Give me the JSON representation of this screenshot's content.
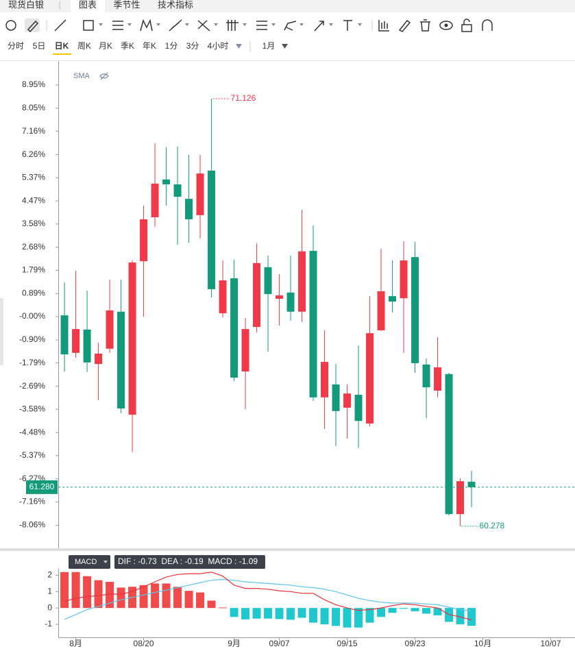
{
  "ui": {
    "tabs": [
      "现货白银",
      "图表",
      "季节性",
      "技术指标"
    ],
    "periods": [
      "分时",
      "5日",
      "日K",
      "周K",
      "月K",
      "季K",
      "年K",
      "1分",
      "3分",
      "4小时"
    ],
    "range": "1月"
  },
  "chart_data": [
    {
      "type": "candlestick",
      "indicator": "SMA",
      "up_color": "#f03a4a",
      "down_color": "#129a7b",
      "open": [
        0.05,
        -1.4,
        -0.5,
        -1.83,
        -1.24,
        0.19,
        -3.79,
        2.14,
        3.84,
        5.3,
        5.11,
        4.55,
        3.92,
        5.64,
        0.13,
        1.48,
        -2.12,
        -0.4,
        1.91,
        0.69,
        0.93,
        0.19,
        2.54,
        -3.12,
        -2.62,
        -3.52,
        -3.02,
        -4.13,
        -0.53,
        0.79,
        0.71,
        2.3,
        -1.85,
        -2.86,
        -2.22,
        -7.63,
        -6.38
      ],
      "high": [
        1.32,
        1.77,
        1.01,
        -1.01,
        1.43,
        1.43,
        2.17,
        4.29,
        6.7,
        6.54,
        6.57,
        6.25,
        6.25,
        8.42,
        2.17,
        2.2,
        -0.05,
        2.83,
        2.36,
        1.64,
        2.36,
        4.13,
        3.52,
        -0.53,
        -1.83,
        -2.62,
        -1.11,
        0.79,
        2.62,
        2.17,
        2.91,
        2.89,
        -1.62,
        -0.79,
        -2.17,
        -6.25,
        -5.96
      ],
      "low": [
        -2.12,
        -1.59,
        -2.14,
        -3.23,
        -1.4,
        -3.73,
        -5.24,
        0,
        3.47,
        4.29,
        2.78,
        2.86,
        3.02,
        0.74,
        -0.03,
        -2.49,
        -3.57,
        -0.61,
        -1.35,
        -0.34,
        -0.16,
        -0.21,
        -3.26,
        -4.34,
        -5.0,
        -4.71,
        -5.08,
        -4.24,
        -0.56,
        0.16,
        -1.4,
        -2.17,
        -3.92,
        -3.12,
        -7.68,
        -8.1,
        -7.36
      ],
      "close": [
        -1.46,
        -0.48,
        -1.77,
        -1.43,
        0.24,
        -3.55,
        2.09,
        3.76,
        5.14,
        5.11,
        4.63,
        3.76,
        5.53,
        1.06,
        1.4,
        -2.36,
        -0.48,
        2.07,
        0.87,
        0.82,
        0.19,
        2.52,
        -3.12,
        -1.75,
        -3.65,
        -2.97,
        -4.03,
        -0.64,
        0.98,
        0.58,
        2.17,
        -1.8,
        -2.73,
        -1.96,
        -7.63,
        -6.36,
        -6.59
      ],
      "annotations": {
        "high": "71.126",
        "low": "60.278",
        "last": "61.280"
      },
      "xlim": [
        -0.55,
        45.15
      ],
      "ylim": [
        -8.95,
        9.85
      ],
      "yticks": [
        {
          "value": 8.95,
          "label": "8.95%"
        },
        {
          "value": 8.05,
          "label": "8.05%"
        },
        {
          "value": 7.16,
          "label": "7.16%"
        },
        {
          "value": 6.26,
          "label": "6.26%"
        },
        {
          "value": 5.37,
          "label": "5.37%"
        },
        {
          "value": 4.47,
          "label": "4.47%"
        },
        {
          "value": 3.58,
          "label": "3.58%"
        },
        {
          "value": 2.68,
          "label": "2.68%"
        },
        {
          "value": 1.79,
          "label": "1.79%"
        },
        {
          "value": 0.89,
          "label": "0.89%"
        },
        {
          "value": 0,
          "label": "-0.00%"
        },
        {
          "value": -0.9,
          "label": "-0.90%"
        },
        {
          "value": -1.79,
          "label": "-1.79%"
        },
        {
          "value": -2.69,
          "label": "-2.69%"
        },
        {
          "value": -3.58,
          "label": "-3.58%"
        },
        {
          "value": -4.48,
          "label": "-4.48%"
        },
        {
          "value": -5.37,
          "label": "-5.37%"
        },
        {
          "value": -6.27,
          "label": "-6.27%"
        },
        {
          "value": -7.16,
          "label": "-7.16%"
        },
        {
          "value": -8.06,
          "label": "-8.06%"
        }
      ]
    },
    {
      "type": "macd",
      "label": "MACD",
      "legend": "DIF : -0.73  DEA : -0.19  MACD : -1.09",
      "histogram": {
        "pos_color": "#f04a4a",
        "neg_color": "#1ec8cc",
        "values": [
          2.2,
          2.2,
          1.95,
          1.7,
          1.6,
          1.25,
          1.3,
          1.4,
          1.5,
          1.5,
          1.3,
          1.05,
          0.95,
          0.45,
          0.03,
          -0.55,
          -0.7,
          -0.65,
          -0.65,
          -0.68,
          -0.72,
          -0.6,
          -0.9,
          -1.0,
          -1.1,
          -1.2,
          -1.2,
          -0.9,
          -0.55,
          -0.3,
          -0.05,
          -0.2,
          -0.35,
          -0.45,
          -0.85,
          -1.0,
          -1.09
        ]
      },
      "dif": {
        "color": "#e8303c",
        "values": [
          0.4,
          0.6,
          0.7,
          0.75,
          0.85,
          0.85,
          1.0,
          1.3,
          1.6,
          1.9,
          2.05,
          2.1,
          2.1,
          2.2,
          1.95,
          1.4,
          1.2,
          1.2,
          1.15,
          1.05,
          1.0,
          0.9,
          0.9,
          0.5,
          0.2,
          0.0,
          -0.15,
          -0.1,
          0.0,
          0.15,
          0.25,
          0.2,
          0.1,
          0.0,
          -0.4,
          -0.55,
          -0.73
        ]
      },
      "dea": {
        "color": "#5cc4ea",
        "values": [
          -0.7,
          -0.4,
          -0.1,
          0.1,
          0.3,
          0.5,
          0.65,
          0.8,
          0.95,
          1.1,
          1.25,
          1.4,
          1.55,
          1.7,
          1.75,
          1.7,
          1.6,
          1.55,
          1.5,
          1.45,
          1.4,
          1.3,
          1.25,
          1.15,
          1.0,
          0.8,
          0.6,
          0.45,
          0.35,
          0.3,
          0.3,
          0.3,
          0.25,
          0.2,
          0.05,
          -0.1,
          -0.19
        ]
      },
      "xlim": [
        -0.55,
        45.15
      ],
      "ylim": [
        -1.8,
        2.4
      ],
      "yticks": [
        2,
        1,
        0,
        -1
      ],
      "xticks": [
        {
          "value": 1,
          "label": "8月"
        },
        {
          "value": 7,
          "label": "08/20"
        },
        {
          "value": 15,
          "label": "9月"
        },
        {
          "value": 19,
          "label": "09/07"
        },
        {
          "value": 25,
          "label": "09/15"
        },
        {
          "value": 31,
          "label": "09/23"
        },
        {
          "value": 37,
          "label": "10月"
        },
        {
          "value": 43,
          "label": "10/07"
        }
      ]
    }
  ]
}
